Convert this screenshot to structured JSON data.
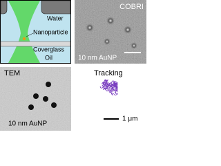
{
  "schematic": {
    "water": "Water",
    "nanoparticle": "Nanoparticle",
    "coverglass": "Coverglass",
    "oil": "Oil"
  },
  "cobri": {
    "title": "COBRI",
    "sample": "10 nm AuNP"
  },
  "tem": {
    "title": "TEM",
    "sample": "10 nm AuNP"
  },
  "tracking": {
    "title": "Tracking",
    "scale": "1 μm"
  }
}
